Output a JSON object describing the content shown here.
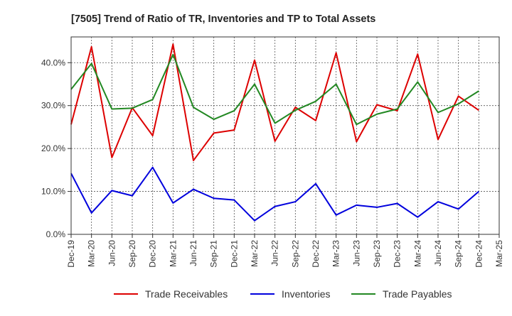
{
  "chart_data": {
    "type": "line",
    "title": "[7505]  Trend of Ratio of TR, Inventories and TP to Total Assets",
    "x": [
      "Dec-19",
      "Mar-20",
      "Jun-20",
      "Sep-20",
      "Dec-20",
      "Mar-21",
      "Jun-21",
      "Sep-21",
      "Dec-21",
      "Mar-22",
      "Jun-22",
      "Sep-22",
      "Dec-22",
      "Mar-23",
      "Jun-23",
      "Sep-23",
      "Dec-23",
      "Mar-24",
      "Jun-24",
      "Sep-24",
      "Dec-24"
    ],
    "x_ticks": [
      "Dec-19",
      "Mar-20",
      "Jun-20",
      "Sep-20",
      "Dec-20",
      "Mar-21",
      "Jun-21",
      "Sep-21",
      "Dec-21",
      "Mar-22",
      "Jun-22",
      "Sep-22",
      "Dec-22",
      "Mar-23",
      "Jun-23",
      "Sep-23",
      "Dec-23",
      "Mar-24",
      "Jun-24",
      "Sep-24",
      "Dec-24",
      "Mar-25"
    ],
    "y_ticks": [
      0,
      10,
      20,
      30,
      40
    ],
    "y_tick_labels": [
      "0.0%",
      "10.0%",
      "20.0%",
      "30.0%",
      "40.0%"
    ],
    "ylim": [
      0,
      46
    ],
    "grid": true,
    "legend_position": "bottom",
    "series": [
      {
        "name": "Trade Receivables",
        "color": "#dd0000",
        "values": [
          25.6,
          43.7,
          17.9,
          29.5,
          23.0,
          44.3,
          17.2,
          23.6,
          24.3,
          40.6,
          21.7,
          29.6,
          26.5,
          42.3,
          21.6,
          30.2,
          28.8,
          42.0,
          22.1,
          32.2,
          28.9
        ]
      },
      {
        "name": "Inventories",
        "color": "#0000dd",
        "values": [
          14.2,
          5.0,
          10.2,
          9.0,
          15.6,
          7.3,
          10.5,
          8.4,
          8.0,
          3.2,
          6.5,
          7.6,
          11.8,
          4.5,
          6.8,
          6.3,
          7.2,
          4.0,
          7.6,
          5.9,
          10.0
        ]
      },
      {
        "name": "Trade Payables",
        "color": "#228822",
        "values": [
          33.8,
          39.8,
          29.2,
          29.4,
          31.4,
          41.9,
          29.6,
          26.8,
          28.8,
          35.0,
          25.9,
          28.9,
          31.0,
          35.0,
          25.6,
          28.0,
          29.2,
          35.5,
          28.4,
          30.4,
          33.4
        ]
      }
    ]
  }
}
